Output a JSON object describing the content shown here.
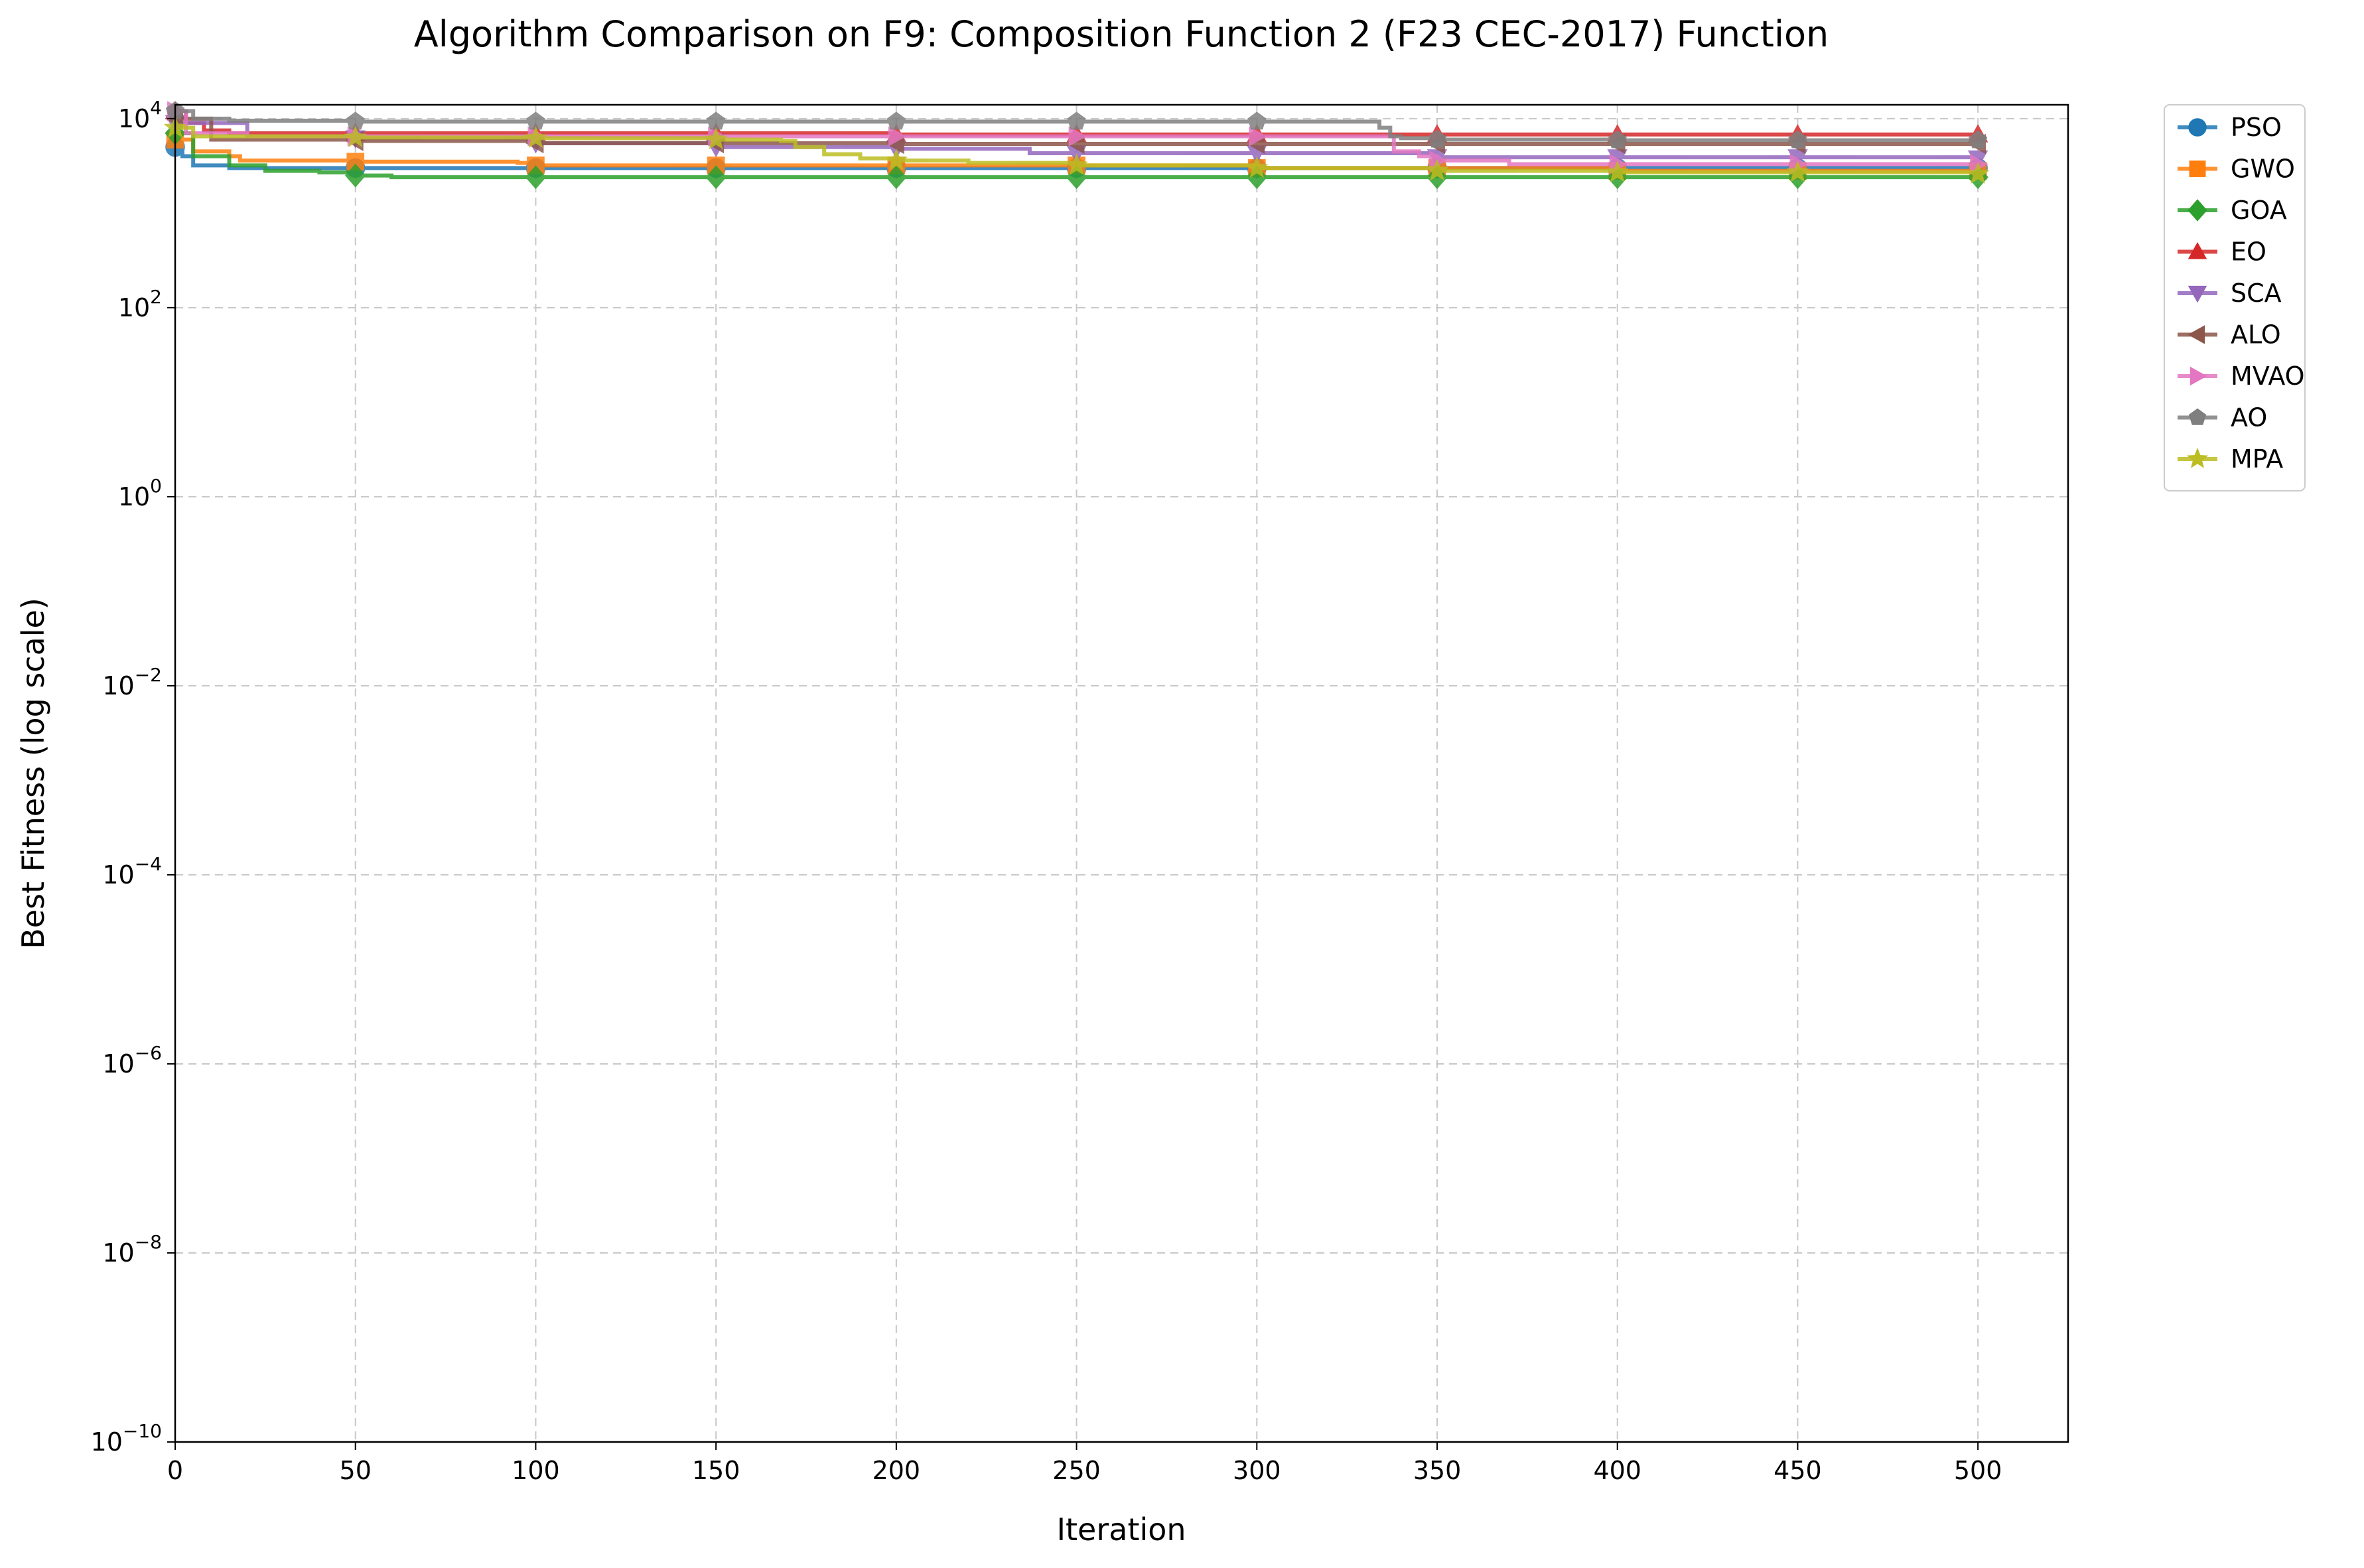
{
  "chart_data": {
    "type": "line",
    "title": "Algorithm Comparison on F9: Composition Function 2 (F23 CEC-2017) Function",
    "xlabel": "Iteration",
    "ylabel": "Best Fitness (log scale)",
    "x_scale": "linear",
    "y_scale": "log",
    "xlim": [
      0,
      525
    ],
    "ylim": [
      1e-10,
      14000
    ],
    "x_ticks": [
      0,
      50,
      100,
      150,
      200,
      250,
      300,
      350,
      400,
      450,
      500
    ],
    "x_tick_labels": [
      "0",
      "50",
      "100",
      "150",
      "200",
      "250",
      "300",
      "350",
      "400",
      "450",
      "500"
    ],
    "y_ticks": [
      {
        "value": 1e-10,
        "base": "10",
        "exp": "−10"
      },
      {
        "value": 1e-08,
        "base": "10",
        "exp": "−8"
      },
      {
        "value": 1e-06,
        "base": "10",
        "exp": "−6"
      },
      {
        "value": 0.0001,
        "base": "10",
        "exp": "−4"
      },
      {
        "value": 0.01,
        "base": "10",
        "exp": "−2"
      },
      {
        "value": 1,
        "base": "10",
        "exp": "0"
      },
      {
        "value": 100,
        "base": "10",
        "exp": "2"
      },
      {
        "value": 10000,
        "base": "10",
        "exp": "4"
      }
    ],
    "grid": true,
    "legend_position": "outside-right-top",
    "marker_every": 50,
    "series": [
      {
        "name": "PSO",
        "color": "#1f77b4",
        "marker": "circle",
        "points": [
          [
            0,
            5000
          ],
          [
            2,
            4000
          ],
          [
            5,
            3200
          ],
          [
            15,
            3000
          ],
          [
            50,
            3000
          ],
          [
            100,
            3000
          ],
          [
            200,
            3000
          ],
          [
            300,
            3000
          ],
          [
            400,
            3000
          ],
          [
            500,
            3000
          ]
        ]
      },
      {
        "name": "GWO",
        "color": "#ff7f0e",
        "marker": "square",
        "points": [
          [
            0,
            6000
          ],
          [
            5,
            4500
          ],
          [
            15,
            4000
          ],
          [
            18,
            3600
          ],
          [
            50,
            3500
          ],
          [
            95,
            3400
          ],
          [
            100,
            3200
          ],
          [
            150,
            3200
          ],
          [
            200,
            3200
          ],
          [
            300,
            3000
          ],
          [
            350,
            3000
          ],
          [
            400,
            2800
          ],
          [
            500,
            2800
          ]
        ]
      },
      {
        "name": "GOA",
        "color": "#2ca02c",
        "marker": "diamond",
        "points": [
          [
            0,
            7000
          ],
          [
            5,
            4000
          ],
          [
            15,
            3200
          ],
          [
            25,
            2800
          ],
          [
            40,
            2700
          ],
          [
            50,
            2500
          ],
          [
            60,
            2400
          ],
          [
            100,
            2400
          ],
          [
            200,
            2400
          ],
          [
            300,
            2400
          ],
          [
            400,
            2400
          ],
          [
            500,
            2400
          ]
        ]
      },
      {
        "name": "EO",
        "color": "#d62728",
        "marker": "triangle-up",
        "points": [
          [
            0,
            12000
          ],
          [
            3,
            9000
          ],
          [
            8,
            7500
          ],
          [
            15,
            7000
          ],
          [
            100,
            7000
          ],
          [
            200,
            6800
          ],
          [
            300,
            6800
          ],
          [
            400,
            6800
          ],
          [
            500,
            6800
          ]
        ]
      },
      {
        "name": "SCA",
        "color": "#9467bd",
        "marker": "triangle-down",
        "points": [
          [
            0,
            9000
          ],
          [
            20,
            6500
          ],
          [
            50,
            6200
          ],
          [
            100,
            5500
          ],
          [
            150,
            5000
          ],
          [
            200,
            4800
          ],
          [
            235,
            4800
          ],
          [
            237,
            4300
          ],
          [
            300,
            4300
          ],
          [
            350,
            3900
          ],
          [
            400,
            3900
          ],
          [
            500,
            3800
          ]
        ]
      },
      {
        "name": "ALO",
        "color": "#8c564b",
        "marker": "triangle-left",
        "points": [
          [
            0,
            10000
          ],
          [
            10,
            6000
          ],
          [
            50,
            5800
          ],
          [
            100,
            5500
          ],
          [
            150,
            5500
          ],
          [
            200,
            5400
          ],
          [
            250,
            5400
          ],
          [
            300,
            5400
          ],
          [
            350,
            5400
          ],
          [
            400,
            5400
          ],
          [
            500,
            5400
          ]
        ]
      },
      {
        "name": "MVAO",
        "color": "#e377c2",
        "marker": "triangle-right",
        "points": [
          [
            0,
            12000
          ],
          [
            3,
            7000
          ],
          [
            20,
            6500
          ],
          [
            100,
            6500
          ],
          [
            200,
            6500
          ],
          [
            300,
            6500
          ],
          [
            333,
            6500
          ],
          [
            338,
            4500
          ],
          [
            345,
            4000
          ],
          [
            350,
            3600
          ],
          [
            365,
            3600
          ],
          [
            370,
            3300
          ],
          [
            400,
            3300
          ],
          [
            500,
            3300
          ]
        ]
      },
      {
        "name": "AO",
        "color": "#7f7f7f",
        "marker": "pentagon",
        "points": [
          [
            0,
            12000
          ],
          [
            5,
            10000
          ],
          [
            15,
            9500
          ],
          [
            50,
            9300
          ],
          [
            100,
            9300
          ],
          [
            200,
            9300
          ],
          [
            300,
            9300
          ],
          [
            330,
            9300
          ],
          [
            334,
            8000
          ],
          [
            337,
            6500
          ],
          [
            340,
            6200
          ],
          [
            350,
            6000
          ],
          [
            400,
            5900
          ],
          [
            500,
            5900
          ]
        ]
      },
      {
        "name": "MPA",
        "color": "#bcbd22",
        "marker": "star",
        "points": [
          [
            0,
            8000
          ],
          [
            5,
            6500
          ],
          [
            50,
            6300
          ],
          [
            100,
            6200
          ],
          [
            150,
            6000
          ],
          [
            168,
            5800
          ],
          [
            172,
            5000
          ],
          [
            180,
            4200
          ],
          [
            190,
            3800
          ],
          [
            200,
            3600
          ],
          [
            220,
            3400
          ],
          [
            250,
            3200
          ],
          [
            300,
            3000
          ],
          [
            350,
            2800
          ],
          [
            400,
            2700
          ],
          [
            500,
            2600
          ]
        ]
      }
    ]
  }
}
